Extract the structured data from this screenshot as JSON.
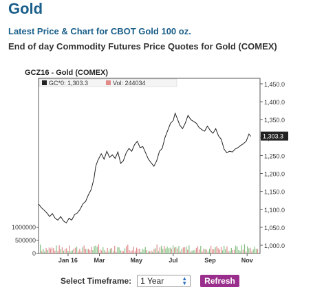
{
  "header": {
    "title": "Gold",
    "subtitle1": "Latest Price & Chart for CBOT Gold 100 oz.",
    "subtitle2": "End of day Commodity Futures Price Quotes for Gold (COMEX)"
  },
  "controls": {
    "timeframe_label": "Select Timeframe:",
    "timeframe_value": "1 Year",
    "refresh_label": "Refresh"
  },
  "colors": {
    "price_line": "#222222",
    "volume_green": "#7fbf7f",
    "volume_red": "#e08a8a",
    "title": "#1a5f8a",
    "refresh": "#9a2e8c"
  },
  "chart_data": {
    "type": "line",
    "title": "GCZ16 - Gold (COMEX)",
    "legend": {
      "price_label": "GC*0: 1,303.3",
      "volume_label": "Vol: 244034",
      "placement": "top-left"
    },
    "last_value_label": "1,303.3",
    "ylim": [
      1000,
      1450
    ],
    "yticks": [
      {
        "value": 1000,
        "label": "1,000.0"
      },
      {
        "value": 1050,
        "label": "1,050.0"
      },
      {
        "value": 1100,
        "label": "1,100.0"
      },
      {
        "value": 1150,
        "label": "1,150.0"
      },
      {
        "value": 1200,
        "label": "1,200.0"
      },
      {
        "value": 1250,
        "label": "1,250.0"
      },
      {
        "value": 1300,
        "label": "1,300.0"
      },
      {
        "value": 1350,
        "label": "1,350.0"
      },
      {
        "value": 1400,
        "label": "1,400.0"
      },
      {
        "value": 1450,
        "label": "1,450.0"
      }
    ],
    "volume_ylim": [
      0,
      1500000
    ],
    "volume_ticks": [
      {
        "value": 0,
        "label": "0"
      },
      {
        "value": 500000,
        "label": "500000"
      },
      {
        "value": 1000000,
        "label": "1000000"
      }
    ],
    "xlim": [
      0,
      12
    ],
    "xticks": [
      {
        "pos": 1.6,
        "label": "Jan 16"
      },
      {
        "pos": 3.3,
        "label": "Mar"
      },
      {
        "pos": 5.3,
        "label": "May"
      },
      {
        "pos": 7.3,
        "label": "Jul"
      },
      {
        "pos": 9.3,
        "label": "Sep"
      },
      {
        "pos": 11.3,
        "label": "Nov"
      }
    ],
    "grid": false,
    "price_series": [
      [
        0.0,
        1115
      ],
      [
        0.15,
        1105
      ],
      [
        0.3,
        1098
      ],
      [
        0.45,
        1090
      ],
      [
        0.6,
        1080
      ],
      [
        0.75,
        1088
      ],
      [
        0.9,
        1075
      ],
      [
        1.05,
        1070
      ],
      [
        1.2,
        1080
      ],
      [
        1.35,
        1068
      ],
      [
        1.5,
        1062
      ],
      [
        1.65,
        1075
      ],
      [
        1.8,
        1070
      ],
      [
        1.95,
        1085
      ],
      [
        2.1,
        1090
      ],
      [
        2.25,
        1100
      ],
      [
        2.4,
        1115
      ],
      [
        2.55,
        1122
      ],
      [
        2.7,
        1140
      ],
      [
        2.85,
        1155
      ],
      [
        3.0,
        1185
      ],
      [
        3.1,
        1220
      ],
      [
        3.2,
        1235
      ],
      [
        3.3,
        1245
      ],
      [
        3.4,
        1255
      ],
      [
        3.55,
        1240
      ],
      [
        3.7,
        1262
      ],
      [
        3.85,
        1245
      ],
      [
        4.0,
        1252
      ],
      [
        4.15,
        1242
      ],
      [
        4.3,
        1260
      ],
      [
        4.45,
        1228
      ],
      [
        4.6,
        1236
      ],
      [
        4.75,
        1258
      ],
      [
        4.9,
        1270
      ],
      [
        5.05,
        1262
      ],
      [
        5.2,
        1280
      ],
      [
        5.35,
        1290
      ],
      [
        5.5,
        1272
      ],
      [
        5.65,
        1275
      ],
      [
        5.8,
        1258
      ],
      [
        5.95,
        1240
      ],
      [
        6.1,
        1230
      ],
      [
        6.25,
        1220
      ],
      [
        6.4,
        1235
      ],
      [
        6.55,
        1262
      ],
      [
        6.7,
        1270
      ],
      [
        6.85,
        1300
      ],
      [
        7.0,
        1320
      ],
      [
        7.15,
        1340
      ],
      [
        7.3,
        1348
      ],
      [
        7.4,
        1368
      ],
      [
        7.5,
        1355
      ],
      [
        7.65,
        1335
      ],
      [
        7.8,
        1325
      ],
      [
        7.95,
        1340
      ],
      [
        8.1,
        1362
      ],
      [
        8.25,
        1350
      ],
      [
        8.4,
        1345
      ],
      [
        8.55,
        1340
      ],
      [
        8.7,
        1328
      ],
      [
        8.85,
        1322
      ],
      [
        9.0,
        1318
      ],
      [
        9.15,
        1332
      ],
      [
        9.3,
        1320
      ],
      [
        9.45,
        1312
      ],
      [
        9.6,
        1325
      ],
      [
        9.75,
        1305
      ],
      [
        9.9,
        1295
      ],
      [
        10.05,
        1268
      ],
      [
        10.2,
        1258
      ],
      [
        10.35,
        1262
      ],
      [
        10.5,
        1260
      ],
      [
        10.65,
        1268
      ],
      [
        10.8,
        1272
      ],
      [
        10.95,
        1278
      ],
      [
        11.1,
        1283
      ],
      [
        11.25,
        1290
      ],
      [
        11.4,
        1310
      ],
      [
        11.5,
        1303.3
      ]
    ]
  }
}
